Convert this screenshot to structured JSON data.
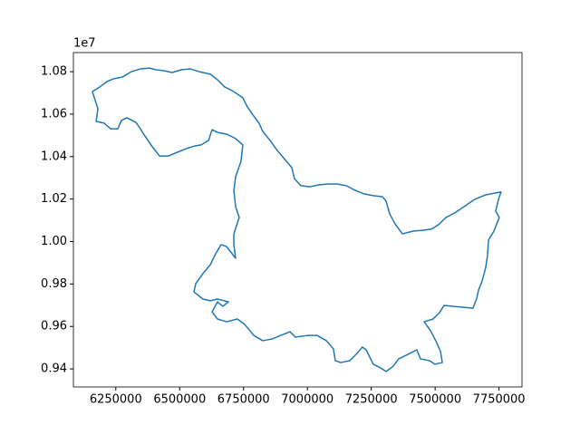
{
  "chart_data": {
    "type": "line",
    "x": [
      6158000,
      6187000,
      6215000,
      6240000,
      6276000,
      6311000,
      6346000,
      6382000,
      6407000,
      6435000,
      6471000,
      6506000,
      6542000,
      6577000,
      6620000,
      6648000,
      6676000,
      6705000,
      6726000,
      6747000,
      6765000,
      6790000,
      6811000,
      6825000,
      6854000,
      6882000,
      6918000,
      6939000,
      6949000,
      6974000,
      7010000,
      7045000,
      7081000,
      7116000,
      7152000,
      7187000,
      7223000,
      7258000,
      7294000,
      7308000,
      7322000,
      7343000,
      7372000,
      7414000,
      7450000,
      7485000,
      7513000,
      7542000,
      7577000,
      7613000,
      7655000,
      7698000,
      7733000,
      7758000,
      7748000,
      7737000,
      7751000,
      7730000,
      7709000,
      7705000,
      7698000,
      7684000,
      7670000,
      7662000,
      7648000,
      7535000,
      7517000,
      7492000,
      7457000,
      7482000,
      7506000,
      7521000,
      7528000,
      7499000,
      7478000,
      7443000,
      7428000,
      7386000,
      7357000,
      7336000,
      7308000,
      7286000,
      7258000,
      7230000,
      7215000,
      7194000,
      7166000,
      7130000,
      7109000,
      7102000,
      7074000,
      7038000,
      7003000,
      6953000,
      6932000,
      6896000,
      6861000,
      6825000,
      6790000,
      6754000,
      6726000,
      6683000,
      6648000,
      6627000,
      6648000,
      6669000,
      6691000,
      6648000,
      6620000,
      6591000,
      6556000,
      6563000,
      6591000,
      6620000,
      6641000,
      6662000,
      6683000,
      6705000,
      6719000,
      6712000,
      6712000,
      6733000,
      6719000,
      6712000,
      6719000,
      6740000,
      6747000,
      6719000,
      6683000,
      6648000,
      6627000,
      6613000,
      6584000,
      6559000,
      6527000,
      6492000,
      6456000,
      6421000,
      6393000,
      6364000,
      6346000,
      6329000,
      6293000,
      6272000,
      6258000,
      6229000,
      6205000,
      6173000,
      6180000,
      6166000,
      6158000
    ],
    "series": [
      {
        "color": "#1f77b4",
        "values": [
          10706000,
          10728000,
          10753000,
          10766000,
          10775000,
          10800000,
          10813000,
          10817000,
          10809000,
          10805000,
          10796000,
          10809000,
          10813000,
          10800000,
          10788000,
          10762000,
          10728000,
          10711000,
          10694000,
          10677000,
          10634000,
          10591000,
          10557000,
          10519000,
          10476000,
          10429000,
          10378000,
          10348000,
          10297000,
          10263000,
          10258000,
          10267000,
          10271000,
          10271000,
          10263000,
          10241000,
          10224000,
          10216000,
          10211000,
          10190000,
          10130000,
          10083000,
          10036000,
          10049000,
          10053000,
          10058000,
          10079000,
          10113000,
          10135000,
          10164000,
          10199000,
          10220000,
          10228000,
          10233000,
          10199000,
          10143000,
          10113000,
          10049000,
          10007000,
          9934000,
          9878000,
          9814000,
          9772000,
          9729000,
          9686000,
          9699000,
          9665000,
          9635000,
          9622000,
          9580000,
          9524000,
          9482000,
          9430000,
          9422000,
          9439000,
          9447000,
          9490000,
          9464000,
          9447000,
          9413000,
          9388000,
          9405000,
          9422000,
          9490000,
          9503000,
          9473000,
          9439000,
          9430000,
          9439000,
          9494000,
          9533000,
          9558000,
          9558000,
          9550000,
          9575000,
          9558000,
          9541000,
          9533000,
          9558000,
          9610000,
          9635000,
          9622000,
          9635000,
          9669000,
          9716000,
          9695000,
          9716000,
          9729000,
          9721000,
          9729000,
          9763000,
          9802000,
          9849000,
          9891000,
          9943000,
          9985000,
          9977000,
          9943000,
          9921000,
          9985000,
          10036000,
          10113000,
          10164000,
          10241000,
          10305000,
          10378000,
          10455000,
          10485000,
          10506000,
          10514000,
          10527000,
          10476000,
          10455000,
          10450000,
          10438000,
          10421000,
          10403000,
          10403000,
          10446000,
          10497000,
          10531000,
          10561000,
          10583000,
          10570000,
          10531000,
          10531000,
          10557000,
          10566000,
          10625000,
          10677000,
          10706000
        ]
      }
    ],
    "xlim": [
      6084000,
      7840000
    ],
    "ylim": [
      9315000,
      10890000
    ],
    "xticks": [
      6250000,
      6500000,
      6750000,
      7000000,
      7250000,
      7500000,
      7750000
    ],
    "yticks": [
      {
        "value": 9400000,
        "label": "0.94"
      },
      {
        "value": 9600000,
        "label": "0.96"
      },
      {
        "value": 9800000,
        "label": "0.98"
      },
      {
        "value": 10000000,
        "label": "1.00"
      },
      {
        "value": 10200000,
        "label": "1.02"
      },
      {
        "value": 10400000,
        "label": "1.04"
      },
      {
        "value": 10600000,
        "label": "1.06"
      },
      {
        "value": 10800000,
        "label": "1.08"
      }
    ],
    "y_offset_text": "1e7",
    "grid": false
  }
}
